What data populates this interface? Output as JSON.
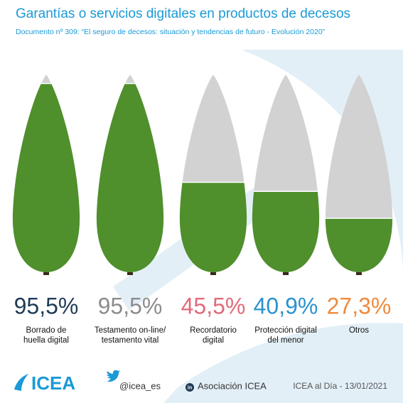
{
  "chart_data": {
    "type": "pictogram",
    "title": "Garantías o servicios digitales en productos de decesos",
    "subtitle": "Documento nº 309: “El seguro de decesos: situación y tendencias de futuro - Evolución 2020”",
    "categories": [
      "Borrado de\nhuella digital",
      "Testamento on-line/\ntestamento vital",
      "Recordatorio\ndigital",
      "Protección digital\ndel menor",
      "Otros"
    ],
    "values": [
      95.5,
      95.5,
      45.5,
      40.9,
      27.3
    ],
    "value_labels": [
      "95,5%",
      "95,5%",
      "45,5%",
      "40,9%",
      "27,3%"
    ],
    "label_colors": [
      "#1f3b57",
      "#8c8c8c",
      "#e06b7a",
      "#2a92d0",
      "#ef8a3c"
    ],
    "color": "#4f8f2c",
    "empty_color": "#d2d2d2",
    "ylim": [
      0,
      100
    ]
  },
  "footer": {
    "logo": "ICEA",
    "twitter": "@icea_es",
    "linkedin": "Asociación ICEA",
    "date": "ICEA al Día - 13/01/2021"
  }
}
